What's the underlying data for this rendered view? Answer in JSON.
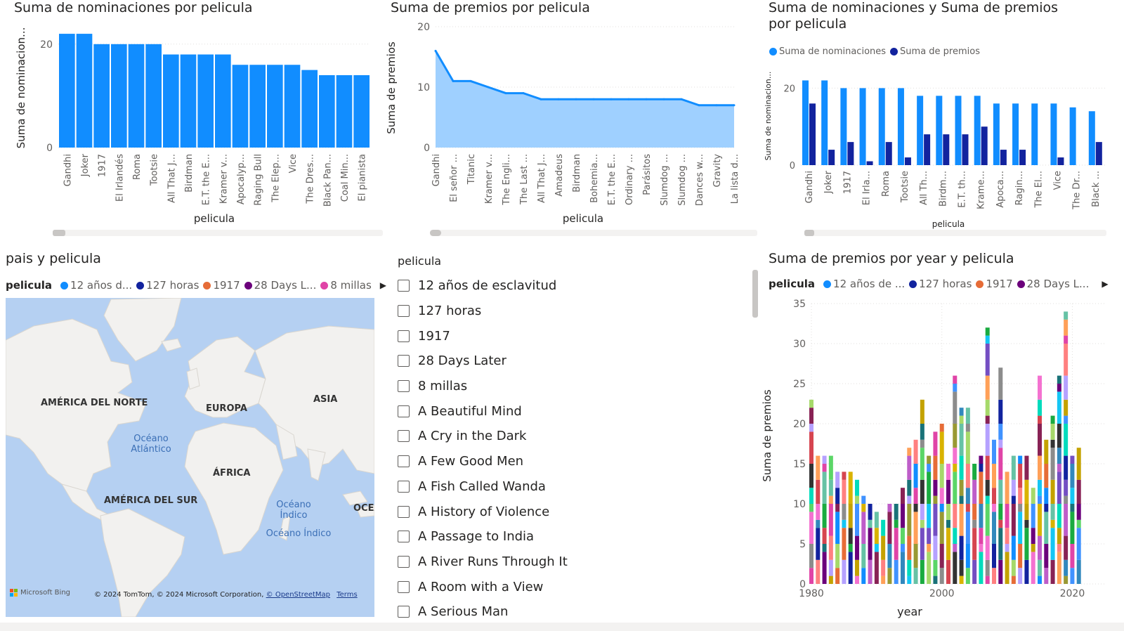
{
  "charts": {
    "nominaciones": {
      "title": "Suma de nominaciones por pelicula",
      "xlabel": "pelicula",
      "ylabel": "Suma de nominacion...",
      "ylim": [
        0,
        25
      ],
      "yticks": [
        "0",
        "20"
      ]
    },
    "premios": {
      "title": "Suma de premios por pelicula",
      "xlabel": "pelicula",
      "ylabel": "Suma de premios",
      "ylim": [
        0,
        20
      ],
      "yticks": [
        "0",
        "10",
        "20"
      ]
    },
    "combo": {
      "title": "Suma de nominaciones y Suma de premios por pelicula",
      "xlabel": "pelicula",
      "ylabel": "Suma de nominacion...",
      "ylim": [
        0,
        25
      ],
      "yticks": [
        "0",
        "20"
      ],
      "legend": [
        "Suma de nominaciones",
        "Suma de premios"
      ]
    },
    "years": {
      "title": "Suma de premios por year y pelicula",
      "xlabel": "year",
      "ylabel": "Suma de premios",
      "ylim": [
        0,
        35
      ],
      "yticks": [
        "0",
        "5",
        "10",
        "15",
        "20",
        "25",
        "30",
        "35"
      ],
      "xticks": [
        "1980",
        "2000",
        "2020"
      ],
      "legend_title": "pelicula",
      "legend": [
        "12 años de ...",
        "127 horas",
        "1917",
        "28 Days L..."
      ]
    }
  },
  "colors": {
    "nominaciones": "#118dff",
    "premios": "#12239e",
    "area_fill": "#9fd0ff",
    "legend_12": "#118dff",
    "legend_127": "#12239e",
    "legend_1917": "#e66c37",
    "legend_28": "#6b007b",
    "legend_8": "#e044a7"
  },
  "map": {
    "title": "pais y pelicula",
    "legend_title": "pelicula",
    "legend": [
      "12 años d...",
      "127 horas",
      "1917",
      "28 Days L...",
      "8 millas"
    ],
    "continents": [
      "AMÉRICA DEL NORTE",
      "EUROPA",
      "ASIA",
      "ÁFRICA",
      "AMÉRICA DEL SUR",
      "OCEA"
    ],
    "oceans": [
      "Océano Atlántico",
      "Océano Índico",
      "Océano Índico"
    ],
    "bing": "Microsoft Bing",
    "copyright": "© 2024 TomTom, © 2024 Microsoft Corporation,",
    "osm": "© OpenStreetMap",
    "terms": "Terms"
  },
  "slicer": {
    "title": "pelicula",
    "items": [
      "12 años de esclavitud",
      "127 horas",
      "1917",
      "28 Days Later",
      "8 millas",
      "A Beautiful Mind",
      "A Cry in the Dark",
      "A Few Good Men",
      "A Fish Called Wanda",
      "A History of Violence",
      "A Passage to India",
      "A River Runs Through It",
      "A Room with a View",
      "A Serious Man"
    ]
  },
  "chart_data": [
    {
      "type": "bar",
      "title": "Suma de nominaciones por pelicula",
      "xlabel": "pelicula",
      "ylabel": "Suma de nominacion...",
      "ylim": [
        0,
        25
      ],
      "categories": [
        "Gandhi",
        "Joker",
        "1917",
        "El Irlandés",
        "Roma",
        "Tootsie",
        "All That J...",
        "Birdman",
        "E.T. the E...",
        "Kramer v...",
        "Apocalyp...",
        "Raging Bull",
        "The Elep...",
        "Vice",
        "The Dres...",
        "Black Pan...",
        "Coal Min...",
        "El pianista"
      ],
      "values": [
        22,
        22,
        20,
        20,
        20,
        20,
        18,
        18,
        18,
        18,
        16,
        16,
        16,
        16,
        15,
        14,
        14,
        14
      ]
    },
    {
      "type": "area",
      "title": "Suma de premios por pelicula",
      "xlabel": "pelicula",
      "ylabel": "Suma de premios",
      "ylim": [
        0,
        20
      ],
      "categories": [
        "Gandhi",
        "El señor ...",
        "Titanic",
        "Kramer v...",
        "The Engli...",
        "The Last ...",
        "All That J...",
        "Amadeus",
        "Birdman",
        "Bohemia...",
        "E.T. the E...",
        "Ordinary ...",
        "Parásitos",
        "Slumdog ...",
        "Slumdog ...",
        "Dances w...",
        "Gravity",
        "La lista d..."
      ],
      "values": [
        16,
        11,
        11,
        10,
        9,
        9,
        8,
        8,
        8,
        8,
        8,
        8,
        8,
        8,
        8,
        7,
        7,
        7
      ]
    },
    {
      "type": "bar",
      "title": "Suma de nominaciones y Suma de premios por pelicula",
      "xlabel": "pelicula",
      "ylabel": "Suma de nominacion...",
      "ylim": [
        0,
        25
      ],
      "categories": [
        "Gandhi",
        "Joker",
        "1917",
        "El Irla...",
        "Roma",
        "Tootsie",
        "All Th...",
        "Birdm...",
        "E.T. th...",
        "Krame...",
        "Apoca...",
        "Ragin...",
        "The El...",
        "Vice",
        "The Dr...",
        "Black ..."
      ],
      "series": [
        {
          "name": "Suma de nominaciones",
          "values": [
            22,
            22,
            20,
            20,
            20,
            20,
            18,
            18,
            18,
            18,
            16,
            16,
            16,
            16,
            15,
            14
          ]
        },
        {
          "name": "Suma de premios",
          "values": [
            16,
            4,
            6,
            1,
            6,
            2,
            8,
            8,
            8,
            10,
            4,
            4,
            0,
            2,
            0,
            6
          ]
        }
      ]
    },
    {
      "type": "bar",
      "title": "Suma de premios por year y pelicula",
      "xlabel": "year",
      "ylabel": "Suma de premios",
      "ylim": [
        0,
        35
      ],
      "xlim": [
        1980,
        2022
      ],
      "x": [
        1980,
        1981,
        1982,
        1983,
        1984,
        1985,
        1986,
        1987,
        1988,
        1989,
        1990,
        1991,
        1992,
        1993,
        1994,
        1995,
        1996,
        1997,
        1998,
        1999,
        2000,
        2001,
        2002,
        2003,
        2004,
        2005,
        2006,
        2007,
        2008,
        2009,
        2010,
        2011,
        2012,
        2013,
        2014,
        2015,
        2016,
        2017,
        2018,
        2019,
        2020,
        2021
      ],
      "values": [
        23,
        16,
        16,
        16,
        14,
        14,
        14,
        13,
        11,
        10,
        9,
        8,
        10,
        10,
        12,
        17,
        18,
        23,
        16,
        19,
        20,
        15,
        26,
        22,
        22,
        15,
        16,
        32,
        18,
        27,
        14,
        16,
        16,
        16,
        12,
        26,
        18,
        21,
        26,
        34,
        16,
        17
      ]
    }
  ]
}
